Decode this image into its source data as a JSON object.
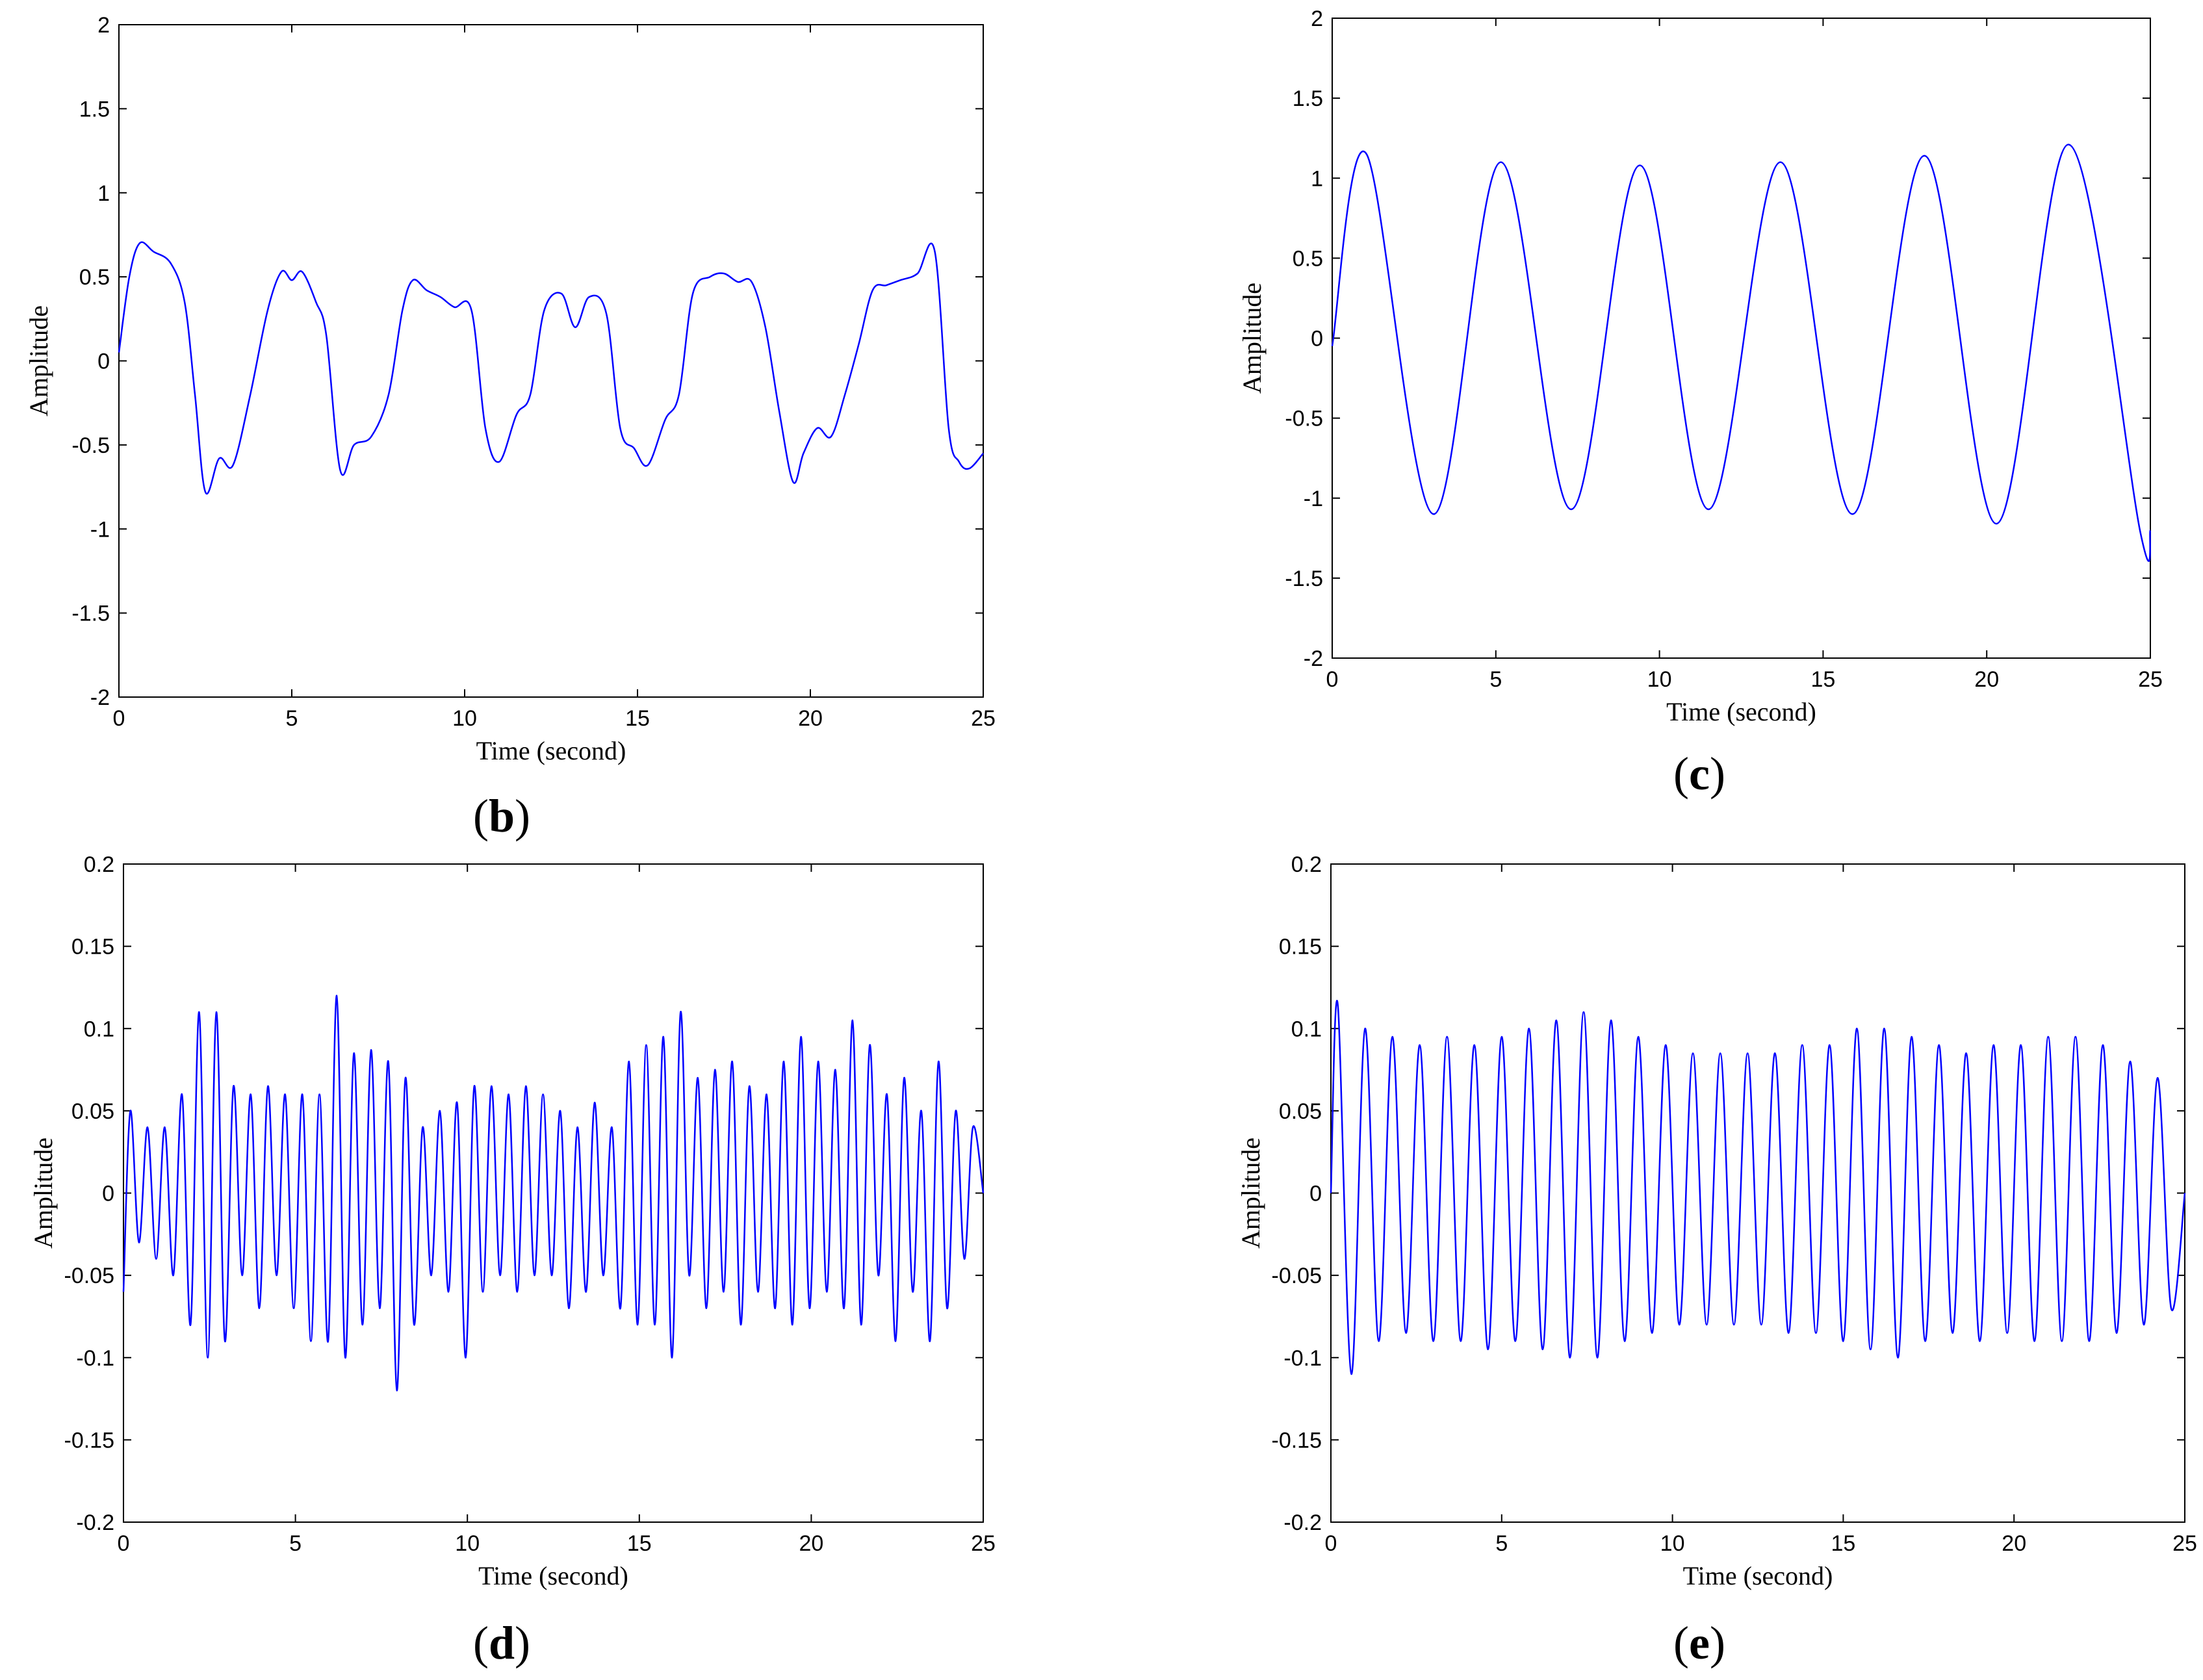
{
  "chart_data": [
    {
      "id": "b",
      "type": "line",
      "caption": "b",
      "xlabel": "Time (second)",
      "ylabel": "Amplitude",
      "xlim": [
        0,
        25
      ],
      "ylim": [
        -2,
        2
      ],
      "xticks": [
        "0",
        "5",
        "10",
        "15",
        "20",
        "25"
      ],
      "yticks": [
        "-2",
        "-1.5",
        "-1",
        "-0.5",
        "0",
        "0.5",
        "1",
        "1.5",
        "2"
      ],
      "grid": false,
      "line_color": "#0000ff",
      "series": [
        {
          "x": [
            0,
            0.3,
            0.6,
            1.0,
            1.5,
            1.9,
            2.2,
            2.5,
            2.9,
            3.3,
            3.8,
            4.3,
            4.7,
            5.0,
            5.3,
            5.7,
            6.0,
            6.4,
            6.8,
            7.3,
            7.8,
            8.2,
            8.5,
            8.9,
            9.3,
            9.7,
            10.2,
            10.6,
            11.0,
            11.5,
            11.9,
            12.3,
            12.8,
            13.2,
            13.6,
            14.1,
            14.5,
            14.9,
            15.3,
            15.8,
            16.2,
            16.6,
            17.1,
            17.5,
            17.9,
            18.3,
            18.7,
            19.1,
            19.5,
            19.8,
            20.2,
            20.6,
            21.0,
            21.4,
            21.8,
            22.2,
            22.6,
            23.1,
            23.6,
            24.0,
            24.3,
            24.6,
            25.0
          ],
          "y": [
            0.05,
            0.5,
            0.7,
            0.65,
            0.58,
            0.35,
            -0.2,
            -0.78,
            -0.58,
            -0.62,
            -0.2,
            0.3,
            0.53,
            0.48,
            0.53,
            0.35,
            0.15,
            -0.65,
            -0.5,
            -0.45,
            -0.2,
            0.3,
            0.48,
            0.42,
            0.38,
            0.32,
            0.3,
            -0.4,
            -0.6,
            -0.32,
            -0.2,
            0.3,
            0.4,
            0.2,
            0.38,
            0.28,
            -0.4,
            -0.52,
            -0.62,
            -0.35,
            -0.2,
            0.4,
            0.5,
            0.52,
            0.47,
            0.47,
            0.2,
            -0.3,
            -0.72,
            -0.55,
            -0.4,
            -0.45,
            -0.2,
            0.1,
            0.42,
            0.45,
            0.48,
            0.52,
            0.65,
            -0.4,
            -0.6,
            -0.64,
            -0.55
          ]
        }
      ]
    },
    {
      "id": "c",
      "type": "line",
      "caption": "c",
      "xlabel": "Time (second)",
      "ylabel": "Amplitude",
      "xlim": [
        0,
        25
      ],
      "ylim": [
        -2,
        2
      ],
      "xticks": [
        "0",
        "5",
        "10",
        "15",
        "20",
        "25"
      ],
      "yticks": [
        "-2",
        "-1.5",
        "-1",
        "-0.5",
        "0",
        "0.5",
        "1",
        "1.5",
        "2"
      ],
      "grid": false,
      "line_color": "#0000ff",
      "series": [
        {
          "x": [
            0,
            1.05,
            3.1,
            5.15,
            7.3,
            9.4,
            11.5,
            13.7,
            15.9,
            18.1,
            20.3,
            22.5,
            24.7,
            25.0
          ],
          "y": [
            -0.05,
            1.15,
            -1.1,
            1.1,
            -1.07,
            1.08,
            -1.07,
            1.1,
            -1.1,
            1.14,
            -1.16,
            1.21,
            -1.22,
            -1.2
          ]
        }
      ]
    },
    {
      "id": "d",
      "type": "line",
      "caption": "d",
      "xlabel": "Time (second)",
      "ylabel": "Amplitude",
      "xlim": [
        0,
        25
      ],
      "ylim": [
        -0.2,
        0.2
      ],
      "xticks": [
        "0",
        "5",
        "10",
        "15",
        "20",
        "25"
      ],
      "yticks": [
        "-0.2",
        "-0.15",
        "-0.1",
        "-0.05",
        "0",
        "0.05",
        "0.1",
        "0.15",
        "0.2"
      ],
      "grid": false,
      "line_color": "#0000ff",
      "series": [
        {
          "x": [
            0,
            0.2,
            0.45,
            0.7,
            0.95,
            1.2,
            1.45,
            1.7,
            1.95,
            2.2,
            2.45,
            2.7,
            2.95,
            3.2,
            3.45,
            3.7,
            3.95,
            4.2,
            4.45,
            4.7,
            4.95,
            5.2,
            5.45,
            5.7,
            5.95,
            6.2,
            6.45,
            6.7,
            6.95,
            7.2,
            7.45,
            7.7,
            7.95,
            8.2,
            8.45,
            8.7,
            8.95,
            9.2,
            9.45,
            9.7,
            9.95,
            10.2,
            10.45,
            10.7,
            10.95,
            11.2,
            11.45,
            11.7,
            11.95,
            12.2,
            12.45,
            12.7,
            12.95,
            13.2,
            13.45,
            13.7,
            13.95,
            14.2,
            14.45,
            14.7,
            14.95,
            15.2,
            15.45,
            15.7,
            15.95,
            16.2,
            16.45,
            16.7,
            16.95,
            17.2,
            17.45,
            17.7,
            17.95,
            18.2,
            18.45,
            18.7,
            18.95,
            19.2,
            19.45,
            19.7,
            19.95,
            20.2,
            20.45,
            20.7,
            20.95,
            21.2,
            21.45,
            21.7,
            21.95,
            22.2,
            22.45,
            22.7,
            22.95,
            23.2,
            23.45,
            23.7,
            23.95,
            24.2,
            24.45,
            24.7,
            25.0
          ],
          "y": [
            -0.06,
            0.05,
            -0.03,
            0.04,
            -0.04,
            0.04,
            -0.05,
            0.06,
            -0.08,
            0.11,
            -0.1,
            0.11,
            -0.09,
            0.065,
            -0.05,
            0.06,
            -0.07,
            0.065,
            -0.05,
            0.06,
            -0.07,
            0.06,
            -0.09,
            0.06,
            -0.09,
            0.12,
            -0.1,
            0.085,
            -0.08,
            0.087,
            -0.07,
            0.08,
            -0.12,
            0.07,
            -0.08,
            0.04,
            -0.05,
            0.05,
            -0.06,
            0.055,
            -0.1,
            0.065,
            -0.06,
            0.065,
            -0.05,
            0.06,
            -0.06,
            0.065,
            -0.05,
            0.06,
            -0.05,
            0.05,
            -0.07,
            0.04,
            -0.06,
            0.055,
            -0.05,
            0.04,
            -0.07,
            0.08,
            -0.08,
            0.09,
            -0.08,
            0.095,
            -0.1,
            0.11,
            -0.05,
            0.07,
            -0.07,
            0.075,
            -0.06,
            0.08,
            -0.08,
            0.065,
            -0.06,
            0.06,
            -0.07,
            0.08,
            -0.08,
            0.095,
            -0.07,
            0.08,
            -0.06,
            0.075,
            -0.07,
            0.105,
            -0.08,
            0.09,
            -0.05,
            0.06,
            -0.09,
            0.07,
            -0.06,
            0.05,
            -0.09,
            0.08,
            -0.07,
            0.05,
            -0.04,
            0.04,
            0.0
          ]
        }
      ]
    },
    {
      "id": "e",
      "type": "line",
      "caption": "e",
      "xlabel": "Time (second)",
      "ylabel": "Amplitude",
      "xlim": [
        0,
        25
      ],
      "ylim": [
        -0.2,
        0.2
      ],
      "xticks": [
        "0",
        "5",
        "10",
        "15",
        "20",
        "25"
      ],
      "yticks": [
        "-0.2",
        "-0.15",
        "-0.1",
        "-0.05",
        "0",
        "0.05",
        "0.1",
        "0.15",
        "0.2"
      ],
      "grid": false,
      "line_color": "#0000ff",
      "series": [
        {
          "x": [
            0,
            0.2,
            0.6,
            1.0,
            1.4,
            1.8,
            2.2,
            2.6,
            3.0,
            3.4,
            3.8,
            4.2,
            4.6,
            5.0,
            5.4,
            5.8,
            6.2,
            6.6,
            7.0,
            7.4,
            7.8,
            8.2,
            8.6,
            9.0,
            9.4,
            9.8,
            10.2,
            10.6,
            11.0,
            11.4,
            11.8,
            12.2,
            12.6,
            13.0,
            13.4,
            13.8,
            14.2,
            14.6,
            15.0,
            15.4,
            15.8,
            16.2,
            16.6,
            17.0,
            17.4,
            17.8,
            18.2,
            18.6,
            19.0,
            19.4,
            19.8,
            20.2,
            20.6,
            21.0,
            21.4,
            21.8,
            22.2,
            22.6,
            23.0,
            23.4,
            23.8,
            24.2,
            24.6,
            25.0
          ],
          "y": [
            0.0,
            0.115,
            -0.11,
            0.1,
            -0.09,
            0.095,
            -0.085,
            0.09,
            -0.09,
            0.095,
            -0.09,
            0.09,
            -0.095,
            0.095,
            -0.09,
            0.1,
            -0.095,
            0.105,
            -0.1,
            0.11,
            -0.1,
            0.105,
            -0.09,
            0.095,
            -0.085,
            0.09,
            -0.08,
            0.085,
            -0.08,
            0.085,
            -0.08,
            0.085,
            -0.08,
            0.085,
            -0.085,
            0.09,
            -0.085,
            0.09,
            -0.09,
            0.1,
            -0.095,
            0.1,
            -0.1,
            0.095,
            -0.09,
            0.09,
            -0.085,
            0.085,
            -0.09,
            0.09,
            -0.085,
            0.09,
            -0.09,
            0.095,
            -0.09,
            0.095,
            -0.09,
            0.09,
            -0.085,
            0.08,
            -0.08,
            0.07,
            -0.07,
            0.0
          ]
        }
      ]
    }
  ]
}
